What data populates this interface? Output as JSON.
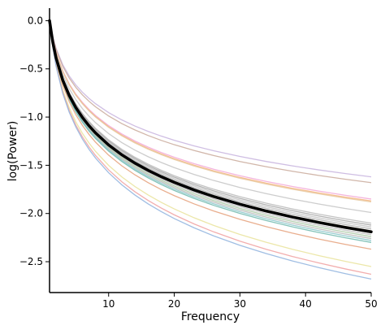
{
  "chart_data": {
    "type": "line",
    "title": "",
    "xlabel": "Frequency",
    "ylabel": "log(Power)",
    "xlim": [
      1,
      50
    ],
    "ylim": [
      -2.82,
      0.13
    ],
    "x_ticks": [
      10,
      20,
      30,
      40,
      50
    ],
    "y_ticks": [
      0.0,
      -0.5,
      -1.0,
      -1.5,
      -2.0,
      -2.5
    ],
    "x_tick_labels": [
      "10",
      "20",
      "30",
      "40",
      "50"
    ],
    "y_tick_labels": [
      "0.0",
      "−0.5",
      "−1.0",
      "−1.5",
      "−2.0",
      "−2.5"
    ],
    "grid": false,
    "legend": "none",
    "x": [
      1,
      1.5,
      2,
      3,
      4,
      5,
      6,
      7,
      8,
      10,
      12,
      14,
      16,
      18,
      20,
      23,
      26,
      30,
      34,
      38,
      42,
      46,
      50
    ],
    "curve_model": "log_power = end_value * ln(x) / ln(50)",
    "mean_series": {
      "end_value": -2.19,
      "color": "#000000"
    },
    "series": [
      {
        "end_value": -1.62,
        "color": "#c7b3de"
      },
      {
        "end_value": -1.68,
        "color": "#c9a99a"
      },
      {
        "end_value": -1.85,
        "color": "#f2a7d6"
      },
      {
        "end_value": -1.87,
        "color": "#f5b27a"
      },
      {
        "end_value": -1.88,
        "color": "#e6c9a0"
      },
      {
        "end_value": -1.99,
        "color": "#c4c4c4"
      },
      {
        "end_value": -2.1,
        "color": "#b8b8b8"
      },
      {
        "end_value": -2.12,
        "color": "#a6a6a6"
      },
      {
        "end_value": -2.14,
        "color": "#c2c2c2"
      },
      {
        "end_value": -2.16,
        "color": "#b0b0b0"
      },
      {
        "end_value": -2.18,
        "color": "#d2c29a"
      },
      {
        "end_value": -2.2,
        "color": "#9e9e9e"
      },
      {
        "end_value": -2.22,
        "color": "#bdbdbd"
      },
      {
        "end_value": -2.24,
        "color": "#a9c9a3"
      },
      {
        "end_value": -2.26,
        "color": "#b7b7b7"
      },
      {
        "end_value": -2.28,
        "color": "#86c5c9"
      },
      {
        "end_value": -2.3,
        "color": "#6fb8ad"
      },
      {
        "end_value": -2.37,
        "color": "#e5a07a"
      },
      {
        "end_value": -2.55,
        "color": "#e9e39a"
      },
      {
        "end_value": -2.63,
        "color": "#f0a0a0"
      },
      {
        "end_value": -2.68,
        "color": "#8fb3de"
      }
    ]
  }
}
